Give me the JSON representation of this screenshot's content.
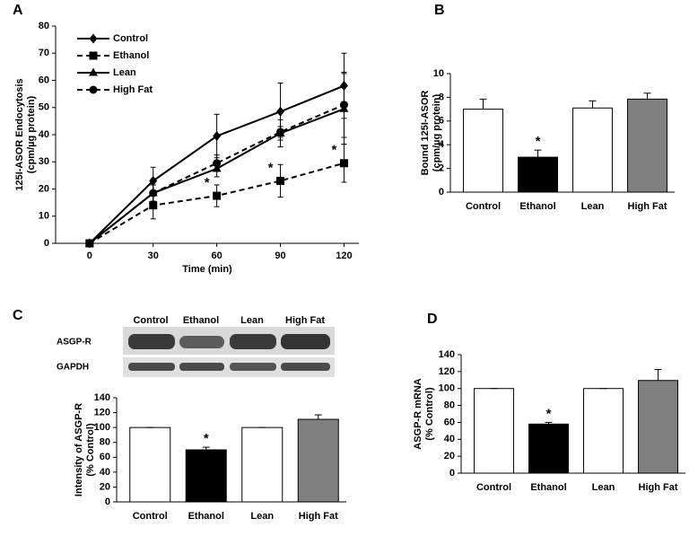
{
  "chart_data": [
    {
      "type": "line",
      "panel": "A",
      "ylabel": [
        "125I-ASOR Endocytosis",
        "(cpm/µg protein)"
      ],
      "xlabel": "Time (min)",
      "x": [
        0,
        30,
        60,
        90,
        120
      ],
      "xlim": [
        -16,
        127
      ],
      "xticks": [
        0,
        30,
        60,
        90,
        120
      ],
      "ylim": [
        0,
        80
      ],
      "yticks": [
        0,
        10,
        20,
        30,
        40,
        50,
        60,
        70,
        80
      ],
      "legend": "upper left",
      "series": [
        {
          "name": "Control",
          "color": "#000000",
          "marker": "diamond",
          "dash": false,
          "values": [
            0,
            23,
            39.5,
            48.5,
            58
          ],
          "errors": [
            0,
            5,
            8,
            10.5,
            12
          ],
          "markers": [
            null,
            null,
            null,
            null,
            null
          ]
        },
        {
          "name": "Ethanol",
          "color": "#000000",
          "marker": "square",
          "dash": true,
          "values": [
            0,
            14,
            17.5,
            23,
            29.5
          ],
          "errors": [
            0,
            5,
            4,
            6,
            7
          ],
          "markers": [
            null,
            null,
            "*",
            "*",
            "*"
          ]
        },
        {
          "name": "Lean",
          "color": "#000000",
          "marker": "triangle",
          "dash": false,
          "values": [
            0,
            18.5,
            27.5,
            40.5,
            49.5
          ],
          "errors": [
            0,
            3,
            3,
            5,
            13
          ],
          "markers": [
            null,
            null,
            null,
            null,
            null
          ]
        },
        {
          "name": "High Fat",
          "color": "#000000",
          "marker": "circle",
          "dash": true,
          "values": [
            0,
            18.5,
            29.5,
            41,
            51
          ],
          "errors": [
            0,
            3,
            3,
            2,
            12
          ],
          "markers": [
            null,
            null,
            null,
            null,
            null
          ]
        }
      ]
    },
    {
      "type": "bar",
      "panel": "B",
      "ylabel": [
        "Bound 125I-ASOR",
        "(cpm/µg protein)"
      ],
      "categories": [
        "Control",
        "Ethanol",
        "Lean",
        "High Fat"
      ],
      "values": [
        7.0,
        2.95,
        7.1,
        7.85
      ],
      "errors": [
        0.85,
        0.6,
        0.6,
        0.5
      ],
      "colors": [
        "#ffffff",
        "#000000",
        "#ffffff",
        "#808080"
      ],
      "markers": [
        null,
        "*",
        null,
        null
      ],
      "ylim": [
        0,
        10
      ],
      "yticks": [
        0,
        2,
        4,
        6,
        8,
        10
      ]
    },
    {
      "type": "bar",
      "panel": "C",
      "blot": {
        "lanes": [
          "Control",
          "Ethanol",
          "Lean",
          "High Fat"
        ],
        "rows": [
          "ASGP-R",
          "GAPDH"
        ]
      },
      "ylabel": [
        "Intensity of ASGP-R",
        "(% Control)"
      ],
      "categories": [
        "Control",
        "Ethanol",
        "Lean",
        "High Fat"
      ],
      "values": [
        100,
        70,
        100,
        111
      ],
      "errors": [
        0,
        3.5,
        0,
        6
      ],
      "colors": [
        "#ffffff",
        "#000000",
        "#ffffff",
        "#808080"
      ],
      "markers": [
        null,
        "*",
        null,
        null
      ],
      "ylim": [
        0,
        140
      ],
      "yticks": [
        0,
        20,
        40,
        60,
        80,
        100,
        120,
        140
      ]
    },
    {
      "type": "bar",
      "panel": "D",
      "ylabel": [
        "ASGP-R mRNA",
        "(% Control)"
      ],
      "categories": [
        "Control",
        "Ethanol",
        "Lean",
        "High Fat"
      ],
      "values": [
        100,
        58,
        100,
        109.5
      ],
      "errors": [
        0,
        2,
        0,
        13
      ],
      "colors": [
        "#ffffff",
        "#000000",
        "#ffffff",
        "#808080"
      ],
      "markers": [
        null,
        "*",
        null,
        null
      ],
      "ylim": [
        0,
        140
      ],
      "yticks": [
        0,
        20,
        40,
        60,
        80,
        100,
        120,
        140
      ]
    }
  ]
}
